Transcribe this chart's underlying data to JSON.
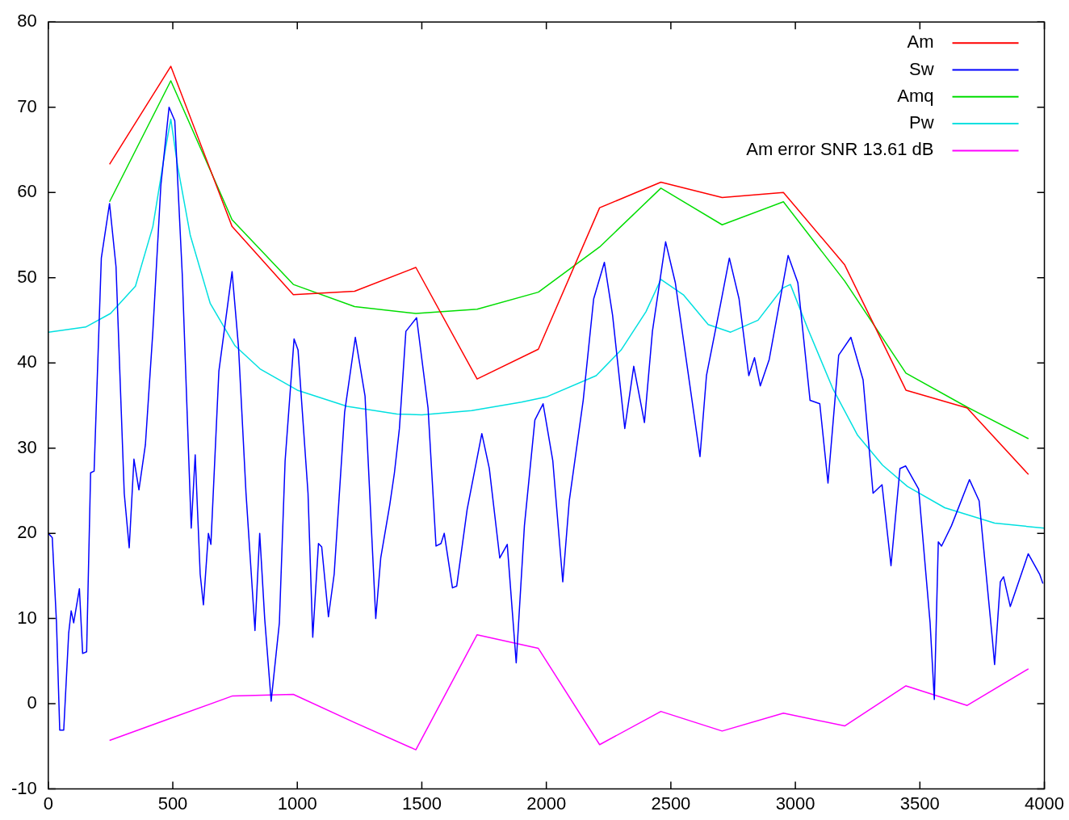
{
  "chart_data": {
    "type": "line",
    "xlim": [
      0,
      4000
    ],
    "xticks": [
      0,
      500,
      1000,
      1500,
      2000,
      2500,
      3000,
      3500,
      4000
    ],
    "ylim": [
      -10,
      80
    ],
    "yticks": [
      -10,
      0,
      10,
      20,
      30,
      40,
      50,
      60,
      70,
      80
    ],
    "grid": false,
    "legend": "top right",
    "marker": "none",
    "line_style": "solid",
    "series": [
      {
        "name": "Am",
        "color": "#ff0000",
        "x": [
          246,
          492,
          738,
          984,
          1230,
          1476,
          1722,
          1968,
          2214,
          2460,
          2706,
          2952,
          3198,
          3444,
          3690,
          3936
        ],
        "values": [
          63.3,
          74.8,
          56,
          48,
          48.4,
          51.2,
          38.1,
          41.6,
          58.2,
          61.2,
          59.4,
          60,
          51.5,
          36.8,
          34.7,
          26.9
        ]
      },
      {
        "name": "Sw",
        "color": "#0000ff",
        "x": [
          0,
          16,
          33,
          46,
          62,
          82,
          92,
          102,
          125,
          138,
          154,
          170,
          184,
          213,
          246,
          272,
          305,
          325,
          344,
          364,
          390,
          420,
          452,
          485,
          508,
          538,
          574,
          590,
          610,
          623,
          643,
          653,
          685,
          738,
          764,
          794,
          830,
          849,
          869,
          895,
          928,
          951,
          987,
          1003,
          1043,
          1062,
          1085,
          1098,
          1125,
          1148,
          1190,
          1233,
          1272,
          1315,
          1335,
          1371,
          1390,
          1410,
          1436,
          1479,
          1525,
          1557,
          1577,
          1590,
          1623,
          1640,
          1682,
          1741,
          1771,
          1813,
          1843,
          1879,
          1912,
          1954,
          1987,
          2026,
          2066,
          2092,
          2148,
          2190,
          2233,
          2266,
          2315,
          2351,
          2394,
          2426,
          2479,
          2518,
          2567,
          2617,
          2643,
          2699,
          2735,
          2774,
          2813,
          2836,
          2859,
          2895,
          2971,
          3010,
          3059,
          3098,
          3131,
          3174,
          3223,
          3272,
          3312,
          3348,
          3384,
          3420,
          3443,
          3495,
          3541,
          3558,
          3574,
          3587,
          3627,
          3699,
          3738,
          3791,
          3800,
          3823,
          3836,
          3863,
          3935,
          3981,
          3994
        ],
        "values": [
          20,
          19.5,
          9.5,
          -3.1,
          -3.1,
          8.3,
          10.9,
          9.5,
          13.5,
          5.9,
          6.1,
          27.1,
          27.3,
          52.3,
          58.7,
          51.3,
          24.7,
          18.3,
          28.7,
          25.1,
          30.4,
          43.7,
          60.8,
          70,
          68.4,
          50.4,
          20.6,
          29.2,
          15.2,
          11.6,
          20,
          18.7,
          39,
          50.7,
          41.8,
          24.7,
          8.6,
          20,
          10,
          0.3,
          9.5,
          28.5,
          42.8,
          41.5,
          24.7,
          7.8,
          18.8,
          18.4,
          10.2,
          15.2,
          34.2,
          43,
          36.1,
          10,
          17.1,
          23.3,
          27.1,
          32.3,
          43.7,
          45.3,
          34.7,
          18.5,
          18.8,
          20,
          13.6,
          13.8,
          22.8,
          31.7,
          27.6,
          17.1,
          18.7,
          4.8,
          20.9,
          33.3,
          35.2,
          28.5,
          14.3,
          23.8,
          35.6,
          47.5,
          51.8,
          45.6,
          32.3,
          39.6,
          33,
          43.7,
          54.2,
          49.4,
          39.3,
          29,
          38.5,
          46.8,
          52.3,
          47.5,
          38.5,
          40.6,
          37.3,
          40.4,
          52.6,
          49.4,
          35.6,
          35.2,
          25.9,
          40.9,
          43,
          38,
          24.7,
          25.7,
          16.2,
          27.6,
          27.9,
          25.2,
          9.5,
          0.5,
          19,
          18.5,
          20.9,
          26.3,
          23.8,
          7.6,
          4.6,
          14.3,
          14.9,
          11.4,
          17.6,
          15.2,
          14.1
        ]
      },
      {
        "name": "Amq",
        "color": "#00dd00",
        "x": [
          246,
          492,
          738,
          984,
          1230,
          1476,
          1722,
          1968,
          2214,
          2460,
          2706,
          2952,
          3198,
          3444,
          3690,
          3936
        ],
        "values": [
          58.9,
          73.1,
          56.8,
          49.2,
          46.6,
          45.8,
          46.3,
          48.3,
          53.6,
          60.5,
          56.2,
          58.9,
          49.6,
          38.8,
          34.8,
          31.1
        ]
      },
      {
        "name": "Pw",
        "color": "#00e0e0",
        "x": [
          0,
          150,
          250,
          350,
          420,
          470,
          492,
          520,
          570,
          650,
          750,
          850,
          1000,
          1200,
          1400,
          1500,
          1700,
          1900,
          2000,
          2200,
          2300,
          2400,
          2460,
          2550,
          2650,
          2740,
          2850,
          2950,
          2980,
          3050,
          3150,
          3250,
          3350,
          3450,
          3600,
          3800,
          4000
        ],
        "values": [
          43.6,
          44.2,
          45.8,
          49,
          56,
          65,
          68.6,
          63,
          55,
          47,
          42,
          39.3,
          36.8,
          34.9,
          34,
          33.9,
          34.4,
          35.4,
          36,
          38.5,
          41.5,
          46,
          49.8,
          48,
          44.5,
          43.6,
          45,
          48.8,
          49.2,
          44,
          37,
          31.5,
          28,
          25.5,
          23,
          21.2,
          20.6
        ]
      },
      {
        "name": "Am error SNR 13.61 dB",
        "color": "#ff00ff",
        "x": [
          246,
          492,
          738,
          984,
          1230,
          1476,
          1722,
          1968,
          2214,
          2460,
          2706,
          2952,
          3198,
          3444,
          3690,
          3936
        ],
        "values": [
          -4.3,
          -1.7,
          0.9,
          1.1,
          -2.2,
          -5.4,
          8.1,
          6.5,
          -4.8,
          -0.9,
          -3.2,
          -1.1,
          -2.6,
          2.1,
          -0.2,
          4.1
        ]
      }
    ]
  }
}
